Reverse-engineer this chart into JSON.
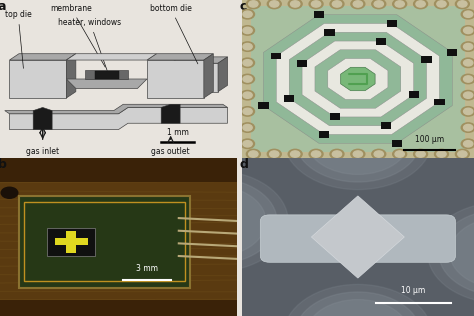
{
  "bg_color": "#e8e4de",
  "panel_label_fontsize": 9,
  "panel_label_fontweight": "bold",
  "label_fontsize": 5.5,
  "scalebar_fontsize": 5.5,
  "annotation_color": "#111111",
  "panel_a": {
    "body_light": "#d0d0d0",
    "body_mid": "#a8a8a8",
    "body_dark": "#686868",
    "black": "#1a1a1a",
    "bg": "#e8e4de"
  },
  "panel_b": {
    "wood_dark": "#3a2808",
    "wood_mid": "#7a5218",
    "wood_light": "#9a6a28",
    "chip_green": "#283818",
    "gold": "#c89820",
    "cross_yellow": "#e8e040",
    "cross_black": "#101010",
    "needle": "#c0b898",
    "scalebar": "3 mm"
  },
  "panel_c": {
    "bg_cream": "#c8c0a0",
    "green_area": "#a8c898",
    "spiral_green": "#78b880",
    "white_line": "#f0f0e8",
    "black_dot": "#101010",
    "circle_rim": "#a09870",
    "circle_inner": "#c8c0a0",
    "scalebar": "100 μm"
  },
  "panel_d": {
    "bg_dark": "#585e66",
    "circle_grey": "#888e96",
    "particle_light": "#c8ccce",
    "bar_color": "#b8c0c4",
    "scalebar": "10 μm"
  }
}
